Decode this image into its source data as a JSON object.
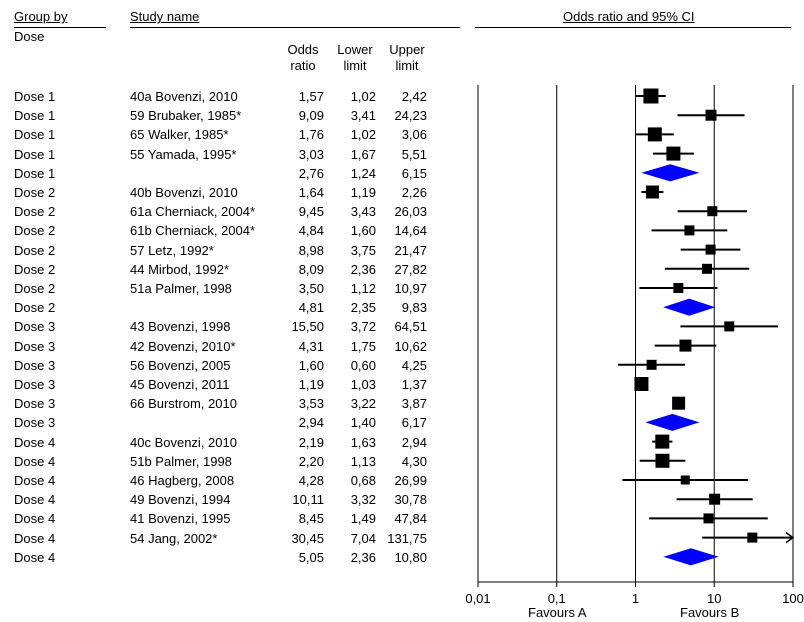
{
  "headers": {
    "group_by": "Group by",
    "dose": "Dose",
    "study_name": "Study name",
    "or_line1": "Odds",
    "or_line2": "ratio",
    "lower_line1": "Lower",
    "lower_line2": "limit",
    "upper_line1": "Upper",
    "upper_line2": "limit",
    "plot_title": "Odds ratio and 95% CI"
  },
  "rows": [
    {
      "group": "Dose 1",
      "study": "40a Bovenzi, 2010",
      "or": "1,57",
      "lower": "1,02",
      "upper": "2,42"
    },
    {
      "group": "Dose 1",
      "study": "59 Brubaker, 1985*",
      "or": "9,09",
      "lower": "3,41",
      "upper": "24,23"
    },
    {
      "group": "Dose 1",
      "study": "65 Walker, 1985*",
      "or": "1,76",
      "lower": "1,02",
      "upper": "3,06"
    },
    {
      "group": "Dose 1",
      "study": "55 Yamada, 1995*",
      "or": "3,03",
      "lower": "1,67",
      "upper": "5,51"
    },
    {
      "group": "Dose 1",
      "study": "",
      "or": "2,76",
      "lower": "1,24",
      "upper": "6,15"
    },
    {
      "group": "Dose 2",
      "study": "40b Bovenzi, 2010",
      "or": "1,64",
      "lower": "1,19",
      "upper": "2,26"
    },
    {
      "group": "Dose 2",
      "study": "61a Cherniack, 2004*",
      "or": "9,45",
      "lower": "3,43",
      "upper": "26,03"
    },
    {
      "group": "Dose 2",
      "study": "61b Cherniack, 2004*",
      "or": "4,84",
      "lower": "1,60",
      "upper": "14,64"
    },
    {
      "group": "Dose 2",
      "study": "57 Letz, 1992*",
      "or": "8,98",
      "lower": "3,75",
      "upper": "21,47"
    },
    {
      "group": "Dose 2",
      "study": "44 Mirbod, 1992*",
      "or": "8,09",
      "lower": "2,36",
      "upper": "27,82"
    },
    {
      "group": "Dose 2",
      "study": "51a Palmer, 1998",
      "or": "3,50",
      "lower": "1,12",
      "upper": "10,97"
    },
    {
      "group": "Dose 2",
      "study": "",
      "or": "4,81",
      "lower": "2,35",
      "upper": "9,83"
    },
    {
      "group": "Dose 3",
      "study": "43 Bovenzi, 1998",
      "or": "15,50",
      "lower": "3,72",
      "upper": "64,51"
    },
    {
      "group": "Dose 3",
      "study": "42 Bovenzi, 2010*",
      "or": "4,31",
      "lower": "1,75",
      "upper": "10,62"
    },
    {
      "group": "Dose 3",
      "study": "56 Bovenzi, 2005",
      "or": "1,60",
      "lower": "0,60",
      "upper": "4,25"
    },
    {
      "group": "Dose 3",
      "study": "45 Bovenzi, 2011",
      "or": "1,19",
      "lower": "1,03",
      "upper": "1,37"
    },
    {
      "group": "Dose 3",
      "study": "66 Burstrom, 2010",
      "or": "3,53",
      "lower": "3,22",
      "upper": "3,87"
    },
    {
      "group": "Dose 3",
      "study": "",
      "or": "2,94",
      "lower": "1,40",
      "upper": "6,17"
    },
    {
      "group": "Dose 4",
      "study": "40c Bovenzi, 2010",
      "or": "2,19",
      "lower": "1,63",
      "upper": "2,94"
    },
    {
      "group": "Dose 4",
      "study": "51b Palmer, 1998",
      "or": "2,20",
      "lower": "1,13",
      "upper": "4,30"
    },
    {
      "group": "Dose 4",
      "study": "46 Hagberg, 2008",
      "or": "4,28",
      "lower": "0,68",
      "upper": "26,99"
    },
    {
      "group": "Dose 4",
      "study": "49 Bovenzi, 1994",
      "or": "10,11",
      "lower": "3,32",
      "upper": "30,78"
    },
    {
      "group": "Dose 4",
      "study": "41 Bovenzi, 1995",
      "or": "8,45",
      "lower": "1,49",
      "upper": "47,84"
    },
    {
      "group": "Dose 4",
      "study": "54 Jang, 2002*",
      "or": "30,45",
      "lower": "7,04",
      "upper": "131,75"
    },
    {
      "group": "Dose 4",
      "study": "",
      "or": "5,05",
      "lower": "2,36",
      "upper": "10,80"
    }
  ],
  "footer": {
    "favours_a": "Favours A",
    "favours_b": "Favours B"
  },
  "chart_data": {
    "type": "forest",
    "title": "Odds ratio and 95% CI",
    "x_scale": "log",
    "xlim": [
      0.01,
      100
    ],
    "x_ticks": [
      0.01,
      0.1,
      1,
      10,
      100
    ],
    "x_tick_labels": [
      "0,01",
      "0,1",
      "1",
      "10",
      "100"
    ],
    "reference_line": 1,
    "study_color": "#000000",
    "summary_color": "#0000ff",
    "points": [
      {
        "kind": "study",
        "or": 1.57,
        "lower": 1.02,
        "upper": 2.42,
        "size": 15
      },
      {
        "kind": "study",
        "or": 9.09,
        "lower": 3.41,
        "upper": 24.23,
        "size": 11
      },
      {
        "kind": "study",
        "or": 1.76,
        "lower": 1.02,
        "upper": 3.06,
        "size": 14
      },
      {
        "kind": "study",
        "or": 3.03,
        "lower": 1.67,
        "upper": 5.51,
        "size": 14
      },
      {
        "kind": "summary",
        "or": 2.76,
        "lower": 1.24,
        "upper": 6.15
      },
      {
        "kind": "study",
        "or": 1.64,
        "lower": 1.19,
        "upper": 2.26,
        "size": 13
      },
      {
        "kind": "study",
        "or": 9.45,
        "lower": 3.43,
        "upper": 26.03,
        "size": 10
      },
      {
        "kind": "study",
        "or": 4.84,
        "lower": 1.6,
        "upper": 14.64,
        "size": 10
      },
      {
        "kind": "study",
        "or": 8.98,
        "lower": 3.75,
        "upper": 21.47,
        "size": 10
      },
      {
        "kind": "study",
        "or": 8.09,
        "lower": 2.36,
        "upper": 27.82,
        "size": 10
      },
      {
        "kind": "study",
        "or": 3.5,
        "lower": 1.12,
        "upper": 10.97,
        "size": 10
      },
      {
        "kind": "summary",
        "or": 4.81,
        "lower": 2.35,
        "upper": 9.83
      },
      {
        "kind": "study",
        "or": 15.5,
        "lower": 3.72,
        "upper": 64.51,
        "size": 10
      },
      {
        "kind": "study",
        "or": 4.31,
        "lower": 1.75,
        "upper": 10.62,
        "size": 12
      },
      {
        "kind": "study",
        "or": 1.6,
        "lower": 0.6,
        "upper": 4.25,
        "size": 10
      },
      {
        "kind": "study",
        "or": 1.19,
        "lower": 1.03,
        "upper": 1.37,
        "size": 14
      },
      {
        "kind": "study",
        "or": 3.53,
        "lower": 3.22,
        "upper": 3.87,
        "size": 13
      },
      {
        "kind": "summary",
        "or": 2.94,
        "lower": 1.4,
        "upper": 6.17
      },
      {
        "kind": "study",
        "or": 2.19,
        "lower": 1.63,
        "upper": 2.94,
        "size": 14
      },
      {
        "kind": "study",
        "or": 2.2,
        "lower": 1.13,
        "upper": 4.3,
        "size": 14
      },
      {
        "kind": "study",
        "or": 4.28,
        "lower": 0.68,
        "upper": 26.99,
        "size": 9
      },
      {
        "kind": "study",
        "or": 10.11,
        "lower": 3.32,
        "upper": 30.78,
        "size": 11
      },
      {
        "kind": "study",
        "or": 8.45,
        "lower": 1.49,
        "upper": 47.84,
        "size": 10
      },
      {
        "kind": "study",
        "or": 30.45,
        "lower": 7.04,
        "upper": 131.75,
        "size": 10,
        "clipped_right": true
      },
      {
        "kind": "summary",
        "or": 5.05,
        "lower": 2.36,
        "upper": 10.8
      }
    ]
  }
}
